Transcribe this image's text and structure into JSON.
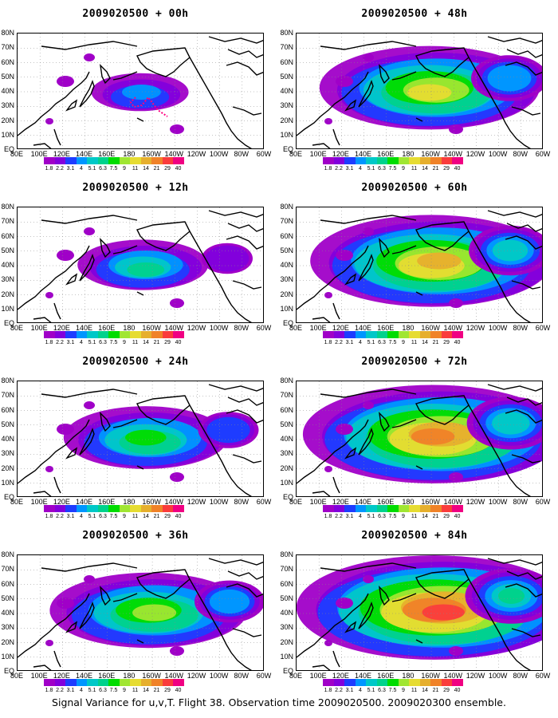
{
  "panels": [
    {
      "title": "2009020500 + 00h",
      "intensity": 0.15,
      "has_track": true
    },
    {
      "title": "2009020500 + 48h",
      "intensity": 0.7,
      "has_track": false
    },
    {
      "title": "2009020500 + 12h",
      "intensity": 0.3,
      "has_track": false
    },
    {
      "title": "2009020500 + 60h",
      "intensity": 0.8,
      "has_track": false
    },
    {
      "title": "2009020500 + 24h",
      "intensity": 0.45,
      "has_track": false
    },
    {
      "title": "2009020500 + 72h",
      "intensity": 0.88,
      "has_track": false
    },
    {
      "title": "2009020500 + 36h",
      "intensity": 0.6,
      "has_track": false
    },
    {
      "title": "2009020500 + 84h",
      "intensity": 0.95,
      "has_track": false
    }
  ],
  "lat_labels": [
    "80N",
    "70N",
    "60N",
    "50N",
    "40N",
    "30N",
    "20N",
    "10N",
    "EQ"
  ],
  "lon_labels": [
    "80E",
    "100E",
    "120E",
    "140E",
    "160E",
    "180",
    "160W",
    "140W",
    "120W",
    "100W",
    "80W",
    "60W"
  ],
  "colorbar": {
    "labels": [
      "1.8",
      "2.2",
      "3.1",
      "4",
      "5.1",
      "6.3",
      "7.5",
      "9",
      "11",
      "14",
      "21",
      "29",
      "40"
    ],
    "colors": [
      "#a000c8",
      "#8200dc",
      "#1e3cff",
      "#0096ff",
      "#00c8c8",
      "#00d28c",
      "#00dc00",
      "#a0e632",
      "#e6dc32",
      "#e6af2d",
      "#f08228",
      "#fa3c3c",
      "#f00082"
    ]
  },
  "caption": "Signal Variance for u,v,T. Flight 38. Observation time 2009020500. 2009020300 ensemble."
}
